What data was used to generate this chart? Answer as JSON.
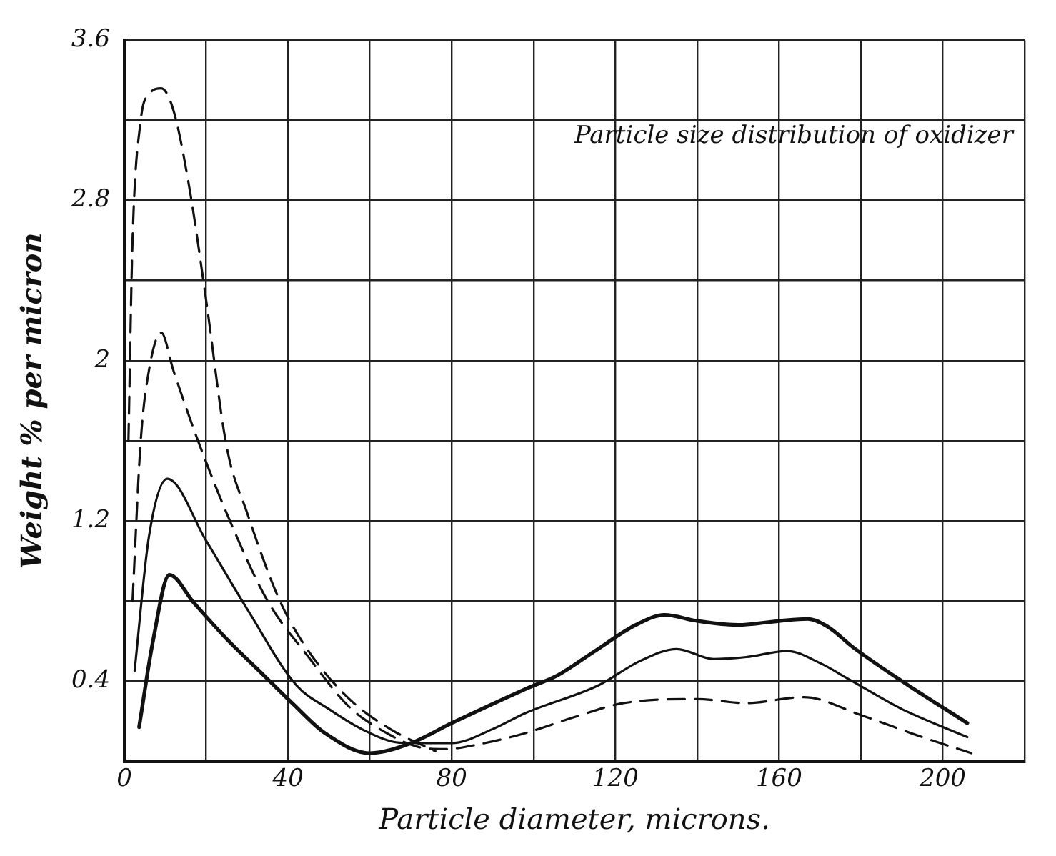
{
  "chart_data": {
    "type": "line",
    "xlabel": "Particle diameter, microns.",
    "ylabel": "Weight % per micron",
    "annotations": [
      "Particle size distribution of oxidizer"
    ],
    "xlim": [
      0,
      220
    ],
    "xticks": [
      0,
      {
        "value": 20,
        "label": null
      },
      40,
      {
        "value": 60,
        "label": null
      },
      80,
      {
        "value": 100,
        "label": null
      },
      120,
      {
        "value": 140,
        "label": null
      },
      160,
      {
        "value": 180,
        "label": null
      },
      200,
      {
        "value": 220,
        "label": null
      }
    ],
    "ylim": [
      0,
      3.6
    ],
    "yticks": [
      {
        "value": 0,
        "label": null
      },
      0.4,
      {
        "value": 0.8,
        "label": null
      },
      1.2,
      {
        "value": 1.6,
        "label": null
      },
      2.0,
      {
        "value": 2.4,
        "label": null
      },
      2.8,
      {
        "value": 3.2,
        "label": null
      },
      3.6
    ],
    "grid": true,
    "legend": false,
    "marker": "none",
    "series": [
      {
        "color": "#111111",
        "line_style": "dashed",
        "x": [
          1,
          2,
          4,
          6,
          9,
          12,
          16,
          20,
          25,
          30,
          38,
          45,
          55,
          65,
          76
        ],
        "values": [
          1.6,
          2.6,
          3.2,
          3.33,
          3.36,
          3.25,
          2.85,
          2.3,
          1.57,
          1.24,
          0.8,
          0.55,
          0.31,
          0.16,
          0.05
        ]
      },
      {
        "color": "#111111",
        "line_style": "dashed",
        "x": [
          2,
          4,
          6,
          9,
          12,
          18,
          26,
          35,
          45,
          55,
          65,
          72,
          78,
          88,
          98,
          110,
          122,
          140,
          152,
          166,
          180,
          195,
          207
        ],
        "values": [
          0.8,
          1.6,
          1.95,
          2.14,
          1.95,
          1.6,
          1.19,
          0.8,
          0.52,
          0.27,
          0.13,
          0.07,
          0.06,
          0.09,
          0.14,
          0.22,
          0.29,
          0.31,
          0.29,
          0.32,
          0.23,
          0.12,
          0.04
        ]
      },
      {
        "color": "#111111",
        "line_style": "solid",
        "x": [
          2.5,
          6,
          10.5,
          20,
          30,
          42,
          50,
          58,
          65,
          70,
          80,
          90,
          98,
          116,
          126,
          135,
          144,
          152,
          162,
          170,
          177,
          190,
          206
        ],
        "values": [
          0.45,
          1.12,
          1.41,
          1.1,
          0.76,
          0.38,
          0.26,
          0.16,
          0.1,
          0.09,
          0.09,
          0.16,
          0.24,
          0.38,
          0.5,
          0.56,
          0.51,
          0.52,
          0.55,
          0.49,
          0.41,
          0.26,
          0.12
        ]
      },
      {
        "color": "#111111",
        "line_style": "solid",
        "x": [
          3.6,
          7,
          11,
          17,
          25,
          33,
          41,
          49,
          60,
          70,
          80,
          98,
          106,
          115,
          125,
          132,
          140,
          150,
          160,
          167,
          172,
          178,
          190,
          206
        ],
        "values": [
          0.17,
          0.6,
          0.93,
          0.79,
          0.61,
          0.45,
          0.29,
          0.14,
          0.04,
          0.09,
          0.19,
          0.36,
          0.43,
          0.55,
          0.68,
          0.73,
          0.7,
          0.68,
          0.7,
          0.71,
          0.67,
          0.57,
          0.4,
          0.19
        ]
      }
    ]
  }
}
